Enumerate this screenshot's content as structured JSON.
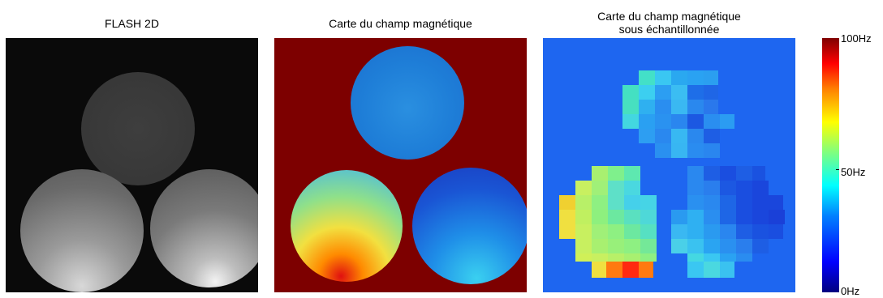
{
  "panels": [
    {
      "title": "FLASH 2D"
    },
    {
      "title": "Carte du champ magnétique"
    },
    {
      "title_line1": "Carte du champ magnétique",
      "title_line2": "sous échantillonnée"
    }
  ],
  "colorbar": {
    "labels": [
      "100Hz",
      "50Hz",
      "0Hz"
    ],
    "colormap": "jet",
    "range": [
      0,
      100
    ],
    "unit": "Hz"
  },
  "colors": {
    "flash_background": "#0a0a0a",
    "fieldmap_background": "#7d0000",
    "subsampled_background": "#1e66f0"
  }
}
